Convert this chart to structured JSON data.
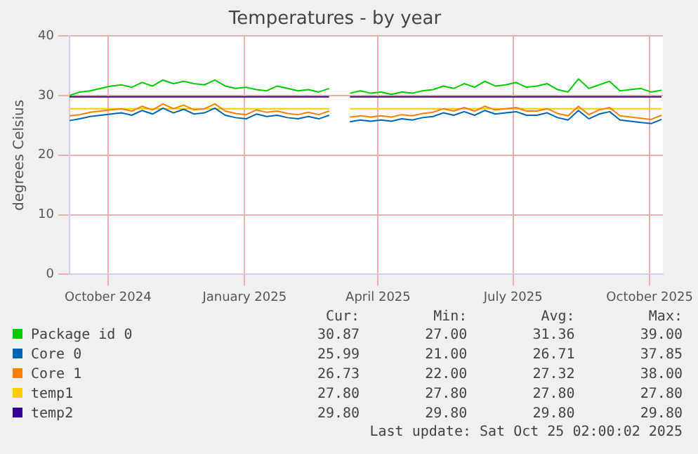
{
  "chart_data": {
    "type": "line",
    "title": "Temperatures - by year",
    "ylabel": "degrees Celsius",
    "x": [
      "2024-09-20",
      "2024-09-27",
      "2024-10-04",
      "2024-10-11",
      "2024-10-18",
      "2024-10-25",
      "2024-11-01",
      "2024-11-08",
      "2024-11-15",
      "2024-11-22",
      "2024-11-29",
      "2024-12-06",
      "2024-12-13",
      "2024-12-20",
      "2024-12-27",
      "2025-01-03",
      "2025-01-10",
      "2025-01-17",
      "2025-01-24",
      "2025-01-31",
      "2025-02-07",
      "2025-02-14",
      "2025-02-21",
      "2025-02-28",
      "2025-03-07",
      "2025-03-14",
      "2025-03-21",
      "2025-03-28",
      "2025-04-04",
      "2025-04-11",
      "2025-04-18",
      "2025-04-25",
      "2025-05-02",
      "2025-05-09",
      "2025-05-16",
      "2025-05-23",
      "2025-05-30",
      "2025-06-06",
      "2025-06-13",
      "2025-06-20",
      "2025-06-27",
      "2025-07-04",
      "2025-07-11",
      "2025-07-18",
      "2025-07-25",
      "2025-08-01",
      "2025-08-08",
      "2025-08-15",
      "2025-08-22",
      "2025-08-29",
      "2025-09-05",
      "2025-09-12",
      "2025-09-19",
      "2025-09-26",
      "2025-10-03",
      "2025-10-10",
      "2025-10-17",
      "2025-10-24"
    ],
    "series": [
      {
        "name": "Package id 0",
        "color": "#00cc00",
        "values": [
          30.0,
          30.6,
          30.8,
          31.2,
          31.6,
          31.8,
          31.4,
          32.2,
          31.6,
          32.6,
          32.0,
          32.4,
          32.0,
          31.8,
          32.6,
          31.6,
          31.2,
          31.4,
          31.0,
          30.8,
          31.6,
          31.2,
          30.8,
          31.0,
          30.6,
          31.2,
          null,
          30.4,
          30.8,
          30.4,
          30.6,
          30.2,
          30.6,
          30.4,
          30.8,
          31.0,
          31.6,
          31.2,
          32.0,
          31.4,
          32.4,
          31.6,
          31.8,
          32.2,
          31.4,
          31.6,
          32.0,
          31.0,
          30.6,
          32.8,
          31.2,
          31.8,
          32.4,
          30.8,
          31.0,
          31.2,
          30.6,
          30.9
        ]
      },
      {
        "name": "Core 0",
        "color": "#0066b3",
        "values": [
          25.8,
          26.1,
          26.5,
          26.7,
          26.9,
          27.1,
          26.7,
          27.5,
          26.9,
          27.9,
          27.1,
          27.7,
          26.9,
          27.1,
          27.9,
          26.7,
          26.3,
          26.1,
          26.9,
          26.5,
          26.7,
          26.3,
          26.1,
          26.5,
          26.1,
          26.7,
          null,
          25.6,
          25.9,
          25.7,
          25.9,
          25.7,
          26.1,
          25.9,
          26.3,
          26.5,
          27.1,
          26.7,
          27.3,
          26.7,
          27.5,
          26.9,
          27.1,
          27.3,
          26.7,
          26.7,
          27.1,
          26.3,
          25.9,
          27.5,
          26.1,
          26.9,
          27.3,
          25.9,
          25.7,
          25.5,
          25.3,
          26.0
        ]
      },
      {
        "name": "Core 1",
        "color": "#ff8000",
        "values": [
          26.6,
          26.8,
          27.2,
          27.4,
          27.6,
          27.8,
          27.4,
          28.2,
          27.6,
          28.6,
          27.8,
          28.4,
          27.6,
          27.8,
          28.6,
          27.4,
          27.0,
          26.8,
          27.6,
          27.2,
          27.4,
          27.0,
          26.8,
          27.2,
          26.8,
          27.4,
          null,
          26.4,
          26.6,
          26.4,
          26.6,
          26.4,
          26.8,
          26.6,
          27.0,
          27.2,
          27.8,
          27.4,
          28.0,
          27.4,
          28.2,
          27.6,
          27.8,
          28.0,
          27.4,
          27.4,
          27.8,
          27.0,
          26.6,
          28.2,
          26.8,
          27.6,
          28.0,
          26.6,
          26.4,
          26.2,
          26.0,
          26.7
        ]
      },
      {
        "name": "temp1",
        "color": "#ffcc00",
        "values": [
          27.8,
          27.8,
          27.8,
          27.8,
          27.8,
          27.8,
          27.8,
          27.8,
          27.8,
          27.8,
          27.8,
          27.8,
          27.8,
          27.8,
          27.8,
          27.8,
          27.8,
          27.8,
          27.8,
          27.8,
          27.8,
          27.8,
          27.8,
          27.8,
          27.8,
          27.8,
          null,
          27.8,
          27.8,
          27.8,
          27.8,
          27.8,
          27.8,
          27.8,
          27.8,
          27.8,
          27.8,
          27.8,
          27.8,
          27.8,
          27.8,
          27.8,
          27.8,
          27.8,
          27.8,
          27.8,
          27.8,
          27.8,
          27.8,
          27.8,
          27.8,
          27.8,
          27.8,
          27.8,
          27.8,
          27.8,
          27.8,
          27.8
        ]
      },
      {
        "name": "temp2",
        "color": "#330099",
        "values": [
          29.8,
          29.8,
          29.8,
          29.8,
          29.8,
          29.8,
          29.8,
          29.8,
          29.8,
          29.8,
          29.8,
          29.8,
          29.8,
          29.8,
          29.8,
          29.8,
          29.8,
          29.8,
          29.8,
          29.8,
          29.8,
          29.8,
          29.8,
          29.8,
          29.8,
          29.8,
          null,
          29.8,
          29.8,
          29.8,
          29.8,
          29.8,
          29.8,
          29.8,
          29.8,
          29.8,
          29.8,
          29.8,
          29.8,
          29.8,
          29.8,
          29.8,
          29.8,
          29.8,
          29.8,
          29.8,
          29.8,
          29.8,
          29.8,
          29.8,
          29.8,
          29.8,
          29.8,
          29.8,
          29.8,
          29.8,
          29.8,
          29.8
        ]
      }
    ],
    "xlim": [
      "2024-09-20",
      "2025-10-25"
    ],
    "xticks": [
      {
        "value": "2024-10-16",
        "label": "October 2024"
      },
      {
        "value": "2025-01-16",
        "label": "January 2025"
      },
      {
        "value": "2025-04-16",
        "label": "April 2025"
      },
      {
        "value": "2025-07-16",
        "label": "July 2025"
      },
      {
        "value": "2025-10-16",
        "label": "October 2025"
      }
    ],
    "ylim": [
      0,
      40
    ],
    "yticks": [
      0,
      10,
      20,
      30,
      40
    ],
    "grid": true,
    "legend": "bottom",
    "marker": "none",
    "line_style": "solid",
    "annotations": [
      "Cur:",
      "Min:",
      "Avg:",
      "Max:",
      "30.87",
      "27.00",
      "31.36",
      "39.00",
      "25.99",
      "21.00",
      "26.71",
      "37.85",
      "26.73",
      "22.00",
      "27.32",
      "38.00",
      "27.80",
      "27.80",
      "27.80",
      "27.80",
      "29.80",
      "29.80",
      "29.80",
      "29.80",
      "Last update: Sat Oct 25 02:00:02 2025"
    ]
  }
}
